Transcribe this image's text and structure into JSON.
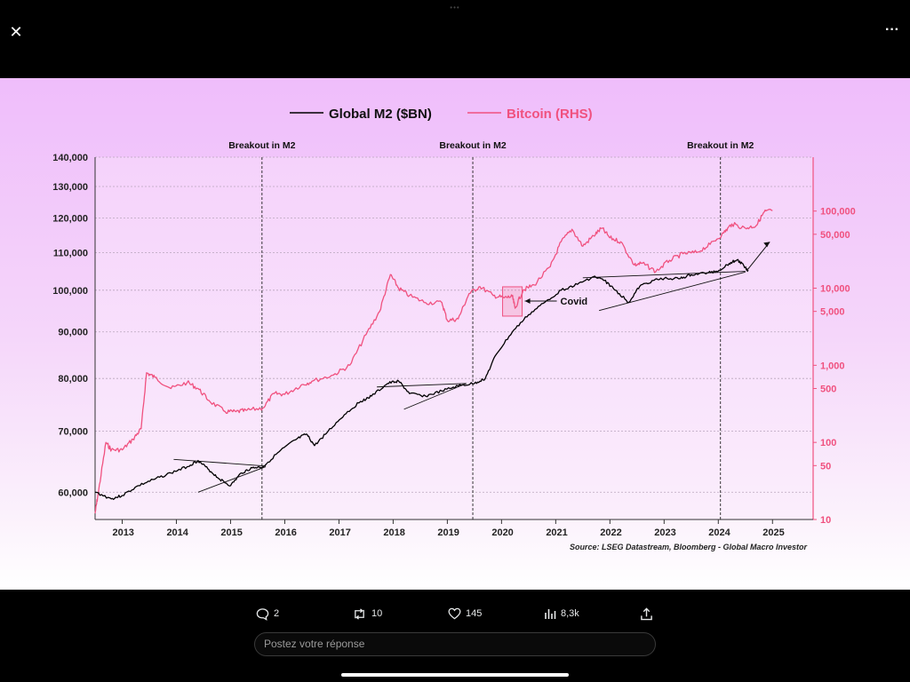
{
  "toolbar": {
    "close_icon": "close-icon",
    "more_icon": "more-icon",
    "close_glyph": "✕",
    "more_glyph": "···"
  },
  "actions": {
    "replies": "2",
    "reposts": "10",
    "likes": "145",
    "views": "8,3k"
  },
  "reply": {
    "placeholder": "Postez votre réponse"
  },
  "colors": {
    "m2": "#000000",
    "bitcoin": "#f0517f",
    "background_top": "#efbdfb"
  },
  "chart_data": {
    "type": "line",
    "title": "",
    "legend": [
      {
        "name": "Global M2 ($BN)",
        "color": "#000000"
      },
      {
        "name": "Bitcoin (RHS)",
        "color": "#f0517f"
      }
    ],
    "legend_position": "top-center",
    "x_ticks": [
      "2013",
      "2014",
      "2015",
      "2016",
      "2017",
      "2018",
      "2019",
      "2020",
      "2021",
      "2022",
      "2023",
      "2024",
      "2025"
    ],
    "xlim": [
      2012.5,
      2025.75
    ],
    "y_left": {
      "scale": "log",
      "range": [
        56000,
        140000
      ],
      "ticks": [
        60000,
        70000,
        80000,
        90000,
        100000,
        110000,
        120000,
        130000,
        140000
      ],
      "tick_labels": [
        "60,000",
        "70,000",
        "80,000",
        "90,000",
        "100,000",
        "110,000",
        "120,000",
        "130,000",
        "140,000"
      ]
    },
    "y_right": {
      "scale": "log",
      "range": [
        10,
        500000
      ],
      "ticks": [
        10,
        50,
        100,
        500,
        1000,
        5000,
        10000,
        50000,
        100000
      ],
      "tick_labels": [
        "10",
        "50",
        "100",
        "500",
        "1,000",
        "5,000",
        "10,000",
        "50,000",
        "100,000"
      ]
    },
    "grid": true,
    "breakouts": [
      {
        "x": 2015.58,
        "label": "Breakout in M2"
      },
      {
        "x": 2019.47,
        "label": "Breakout in M2"
      },
      {
        "x": 2024.04,
        "label": "Breakout in M2"
      }
    ],
    "series": [
      {
        "name": "Global M2 ($BN)",
        "axis": "left",
        "points": [
          [
            2012.5,
            60000
          ],
          [
            2012.8,
            59000
          ],
          [
            2013.0,
            59500
          ],
          [
            2013.3,
            61000
          ],
          [
            2013.6,
            62000
          ],
          [
            2013.9,
            63000
          ],
          [
            2014.2,
            64000
          ],
          [
            2014.4,
            65000
          ],
          [
            2014.6,
            63500
          ],
          [
            2014.8,
            62000
          ],
          [
            2015.0,
            61000
          ],
          [
            2015.2,
            63000
          ],
          [
            2015.4,
            63800
          ],
          [
            2015.6,
            64000
          ],
          [
            2015.9,
            66500
          ],
          [
            2016.2,
            68500
          ],
          [
            2016.4,
            69500
          ],
          [
            2016.55,
            67500
          ],
          [
            2016.8,
            70000
          ],
          [
            2017.1,
            73000
          ],
          [
            2017.4,
            75500
          ],
          [
            2017.6,
            76500
          ],
          [
            2017.9,
            79000
          ],
          [
            2018.1,
            79500
          ],
          [
            2018.3,
            77000
          ],
          [
            2018.6,
            76500
          ],
          [
            2018.9,
            77500
          ],
          [
            2019.2,
            78500
          ],
          [
            2019.5,
            79000
          ],
          [
            2019.7,
            80000
          ],
          [
            2019.9,
            85000
          ],
          [
            2020.2,
            90000
          ],
          [
            2020.5,
            94000
          ],
          [
            2020.8,
            97000
          ],
          [
            2021.1,
            100000
          ],
          [
            2021.4,
            101500
          ],
          [
            2021.7,
            103500
          ],
          [
            2021.9,
            102500
          ],
          [
            2022.1,
            100000
          ],
          [
            2022.35,
            97000
          ],
          [
            2022.55,
            101000
          ],
          [
            2022.8,
            102500
          ],
          [
            2023.0,
            103000
          ],
          [
            2023.3,
            103000
          ],
          [
            2023.5,
            104000
          ],
          [
            2023.8,
            104500
          ],
          [
            2024.0,
            105000
          ],
          [
            2024.2,
            107000
          ],
          [
            2024.35,
            108000
          ],
          [
            2024.5,
            106000
          ],
          [
            2024.55,
            105000
          ]
        ]
      },
      {
        "name": "Bitcoin (RHS)",
        "axis": "right",
        "points": [
          [
            2012.5,
            12
          ],
          [
            2012.55,
            20
          ],
          [
            2012.7,
            100
          ],
          [
            2012.8,
            80
          ],
          [
            2013.0,
            80
          ],
          [
            2013.2,
            110
          ],
          [
            2013.35,
            150
          ],
          [
            2013.45,
            800
          ],
          [
            2013.6,
            700
          ],
          [
            2013.9,
            500
          ],
          [
            2014.2,
            600
          ],
          [
            2014.4,
            500
          ],
          [
            2014.6,
            350
          ],
          [
            2014.9,
            250
          ],
          [
            2015.1,
            250
          ],
          [
            2015.3,
            260
          ],
          [
            2015.6,
            280
          ],
          [
            2015.8,
            430
          ],
          [
            2016.0,
            420
          ],
          [
            2016.3,
            550
          ],
          [
            2016.5,
            620
          ],
          [
            2016.9,
            750
          ],
          [
            2017.2,
            1000
          ],
          [
            2017.5,
            2500
          ],
          [
            2017.75,
            5000
          ],
          [
            2017.95,
            15000
          ],
          [
            2018.1,
            10000
          ],
          [
            2018.3,
            8000
          ],
          [
            2018.6,
            6500
          ],
          [
            2018.9,
            6500
          ],
          [
            2019.0,
            3800
          ],
          [
            2019.2,
            4000
          ],
          [
            2019.4,
            8500
          ],
          [
            2019.6,
            10500
          ],
          [
            2019.85,
            8000
          ],
          [
            2020.05,
            7500
          ],
          [
            2020.2,
            7800
          ],
          [
            2020.25,
            5500
          ],
          [
            2020.4,
            9500
          ],
          [
            2020.6,
            11000
          ],
          [
            2020.9,
            19000
          ],
          [
            2021.1,
            40000
          ],
          [
            2021.3,
            58000
          ],
          [
            2021.5,
            35000
          ],
          [
            2021.7,
            48000
          ],
          [
            2021.85,
            60000
          ],
          [
            2022.0,
            45000
          ],
          [
            2022.2,
            40000
          ],
          [
            2022.45,
            20000
          ],
          [
            2022.6,
            21000
          ],
          [
            2022.85,
            16500
          ],
          [
            2023.1,
            23000
          ],
          [
            2023.35,
            28000
          ],
          [
            2023.6,
            29000
          ],
          [
            2023.85,
            37000
          ],
          [
            2024.1,
            52000
          ],
          [
            2024.25,
            68000
          ],
          [
            2024.5,
            60000
          ],
          [
            2024.7,
            65000
          ],
          [
            2024.85,
            98000
          ],
          [
            2025.0,
            102000
          ]
        ]
      }
    ],
    "annotations": [
      {
        "text": "Covid",
        "x": 2020.2,
        "axis": "right",
        "y": 7000
      }
    ],
    "source": "Source: LSEG Datastream, Bloomberg - Global Macro Investor"
  }
}
